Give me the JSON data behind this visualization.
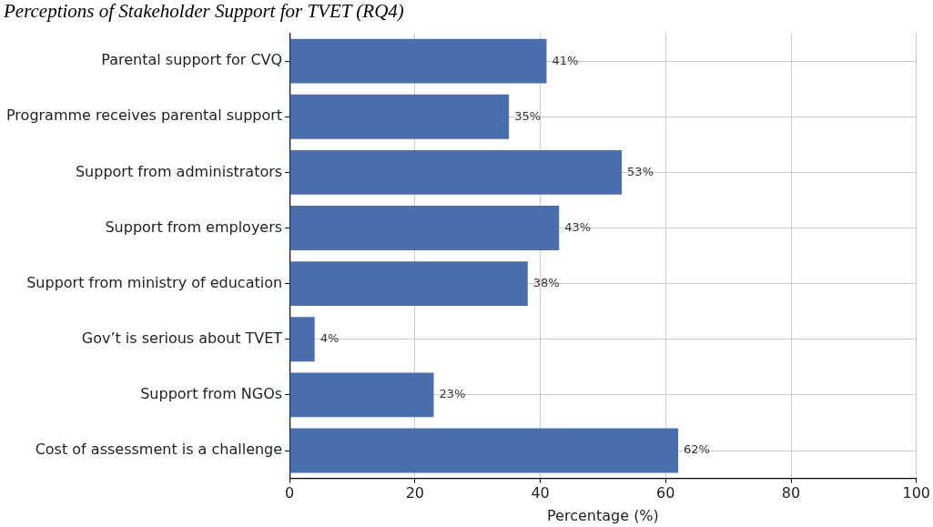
{
  "chart_data": {
    "type": "bar",
    "orientation": "horizontal",
    "title": "Perceptions of Stakeholder Support for TVET (RQ4)",
    "xlabel": "Percentage (%)",
    "categories": [
      "Parental support for CVQ",
      "Programme receives parental support",
      "Support from administrators",
      "Support from employers",
      "Support from ministry of education",
      "Gov’t is serious about TVET",
      "Support from NGOs",
      "Cost of assessment is a challenge"
    ],
    "values": [
      41,
      35,
      53,
      43,
      38,
      4,
      23,
      62
    ],
    "value_labels": [
      "41%",
      "35%",
      "53%",
      "43%",
      "38%",
      "4%",
      "23%",
      "62%"
    ],
    "color": "#4a6fae",
    "xlim": [
      0,
      100
    ],
    "xticks": [
      0,
      20,
      40,
      60,
      80,
      100
    ],
    "grid": true
  }
}
